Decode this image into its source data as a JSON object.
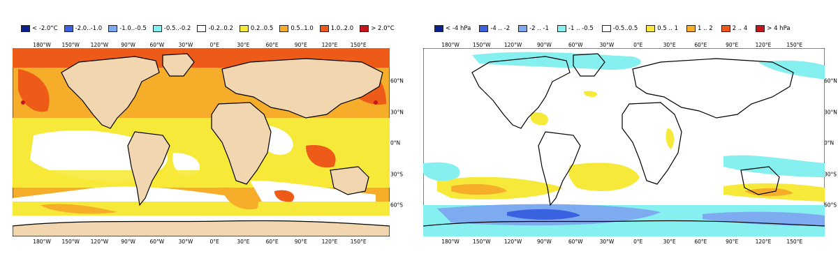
{
  "left_map": {
    "legend": [
      {
        "label": "< -2.0°C",
        "color": "#0b1f8f"
      },
      {
        "label": "-2.0..-1.0",
        "color": "#3a62e0"
      },
      {
        "label": "-1.0..-0.5",
        "color": "#7eaaf0"
      },
      {
        "label": "-0.5..-0.2",
        "color": "#86f0f0"
      },
      {
        "label": "-0.2..0.2",
        "color": "#ffffff"
      },
      {
        "label": "0.2..0.5",
        "color": "#f7e93a"
      },
      {
        "label": "0.5..1.0",
        "color": "#f6ad2a"
      },
      {
        "label": "1.0..2.0",
        "color": "#ee5a17"
      },
      {
        "label": "> 2.0°C",
        "color": "#c8141a"
      }
    ],
    "lon_labels": [
      "180°W",
      "150°W",
      "120°W",
      "90°W",
      "60°W",
      "30°W",
      "0°E",
      "30°E",
      "60°E",
      "90°E",
      "120°E",
      "150°E"
    ],
    "lat_labels": [
      "60°N",
      "30°N",
      "0°N",
      "30°S",
      "60°S"
    ],
    "land_color": "#f2d6b0"
  },
  "right_map": {
    "legend": [
      {
        "label": "< -4 hPa",
        "color": "#0b1f8f"
      },
      {
        "label": "-4 .. -2",
        "color": "#3a62e0"
      },
      {
        "label": "-2 .. -1",
        "color": "#7eaaf0"
      },
      {
        "label": "-1 .. -0.5",
        "color": "#86f0f0"
      },
      {
        "label": "-0.5..0.5",
        "color": "#ffffff"
      },
      {
        "label": "0.5 .. 1",
        "color": "#f7e93a"
      },
      {
        "label": "1 .. 2",
        "color": "#f6ad2a"
      },
      {
        "label": "2 .. 4",
        "color": "#ee5a17"
      },
      {
        "label": "> 4 hPa",
        "color": "#c8141a"
      }
    ],
    "lon_labels": [
      "180°W",
      "150°W",
      "120°W",
      "90°W",
      "60°W",
      "30°W",
      "0°E",
      "30°E",
      "60°E",
      "90°E",
      "120°E",
      "150°E"
    ],
    "lat_labels": [
      "60°N",
      "30°N",
      "0°N",
      "30°S",
      "60°S"
    ]
  }
}
